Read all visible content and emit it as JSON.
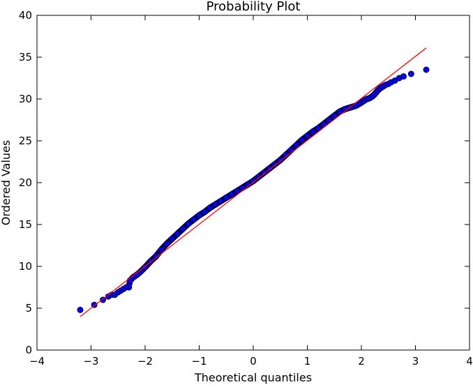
{
  "chart_data": {
    "type": "scatter",
    "title": "Probability Plot",
    "xlabel": "Theoretical quantiles",
    "ylabel": "Ordered Values",
    "xlim": [
      -4,
      4
    ],
    "ylim": [
      0,
      40
    ],
    "x_ticks": [
      -4,
      -3,
      -2,
      -1,
      0,
      1,
      2,
      3,
      4
    ],
    "y_ticks": [
      0,
      5,
      10,
      15,
      20,
      25,
      30,
      35,
      40
    ],
    "x_tick_labels": [
      "−4",
      "−3",
      "−2",
      "−1",
      "0",
      "1",
      "2",
      "3",
      "4"
    ],
    "y_tick_labels": [
      "0",
      "5",
      "10",
      "15",
      "20",
      "25",
      "30",
      "35",
      "40"
    ],
    "grid": false,
    "series": [
      {
        "kind": "points",
        "marker_color": "#0000ff",
        "edge_color": "#000033",
        "points": [
          [
            -3.2,
            4.8
          ],
          [
            -2.94,
            5.4
          ],
          [
            -2.78,
            6.0
          ],
          [
            -2.68,
            6.4
          ],
          [
            -2.62,
            6.6
          ],
          [
            -2.56,
            6.6
          ],
          [
            -2.5,
            6.9
          ],
          [
            -2.45,
            7.1
          ],
          [
            -2.4,
            7.3
          ],
          [
            -2.35,
            7.5
          ],
          [
            -2.3,
            7.5
          ],
          [
            -2.28,
            8.3
          ],
          [
            -2.22,
            8.7
          ],
          [
            -2.15,
            9.0
          ],
          [
            -2.08,
            9.4
          ],
          [
            -2.0,
            9.9
          ],
          [
            -1.9,
            10.6
          ],
          [
            -1.8,
            11.2
          ],
          [
            -1.7,
            12.0
          ],
          [
            -1.6,
            12.7
          ],
          [
            -1.5,
            13.3
          ],
          [
            -1.4,
            13.9
          ],
          [
            -1.3,
            14.5
          ],
          [
            -1.2,
            15.1
          ],
          [
            -1.1,
            15.6
          ],
          [
            -1.0,
            16.1
          ],
          [
            -0.9,
            16.5
          ],
          [
            -0.8,
            17.0
          ],
          [
            -0.7,
            17.4
          ],
          [
            -0.6,
            17.8
          ],
          [
            -0.5,
            18.2
          ],
          [
            -0.4,
            18.6
          ],
          [
            -0.3,
            19.0
          ],
          [
            -0.2,
            19.4
          ],
          [
            -0.1,
            19.8
          ],
          [
            0.0,
            20.2
          ],
          [
            0.1,
            20.7
          ],
          [
            0.2,
            21.2
          ],
          [
            0.3,
            21.7
          ],
          [
            0.4,
            22.2
          ],
          [
            0.5,
            22.7
          ],
          [
            0.6,
            23.3
          ],
          [
            0.7,
            23.9
          ],
          [
            0.8,
            24.5
          ],
          [
            0.9,
            25.1
          ],
          [
            1.0,
            25.6
          ],
          [
            1.1,
            26.1
          ],
          [
            1.2,
            26.5
          ],
          [
            1.3,
            27.0
          ],
          [
            1.4,
            27.5
          ],
          [
            1.5,
            28.0
          ],
          [
            1.6,
            28.5
          ],
          [
            1.7,
            28.8
          ],
          [
            1.8,
            29.0
          ],
          [
            1.9,
            29.2
          ],
          [
            1.98,
            29.5
          ],
          [
            2.05,
            29.8
          ],
          [
            2.1,
            30.0
          ],
          [
            2.15,
            30.1
          ],
          [
            2.2,
            30.3
          ],
          [
            2.25,
            30.6
          ],
          [
            2.3,
            31.0
          ],
          [
            2.35,
            31.3
          ],
          [
            2.4,
            31.5
          ],
          [
            2.45,
            31.7
          ],
          [
            2.5,
            31.8
          ],
          [
            2.55,
            32.0
          ],
          [
            2.62,
            32.2
          ],
          [
            2.7,
            32.5
          ],
          [
            2.78,
            32.7
          ],
          [
            2.92,
            33.0
          ],
          [
            3.2,
            33.5
          ]
        ]
      },
      {
        "kind": "fit-line",
        "color": "#ff0000",
        "x": [
          -3.2,
          3.2
        ],
        "y": [
          4.0,
          36.1
        ]
      }
    ]
  }
}
